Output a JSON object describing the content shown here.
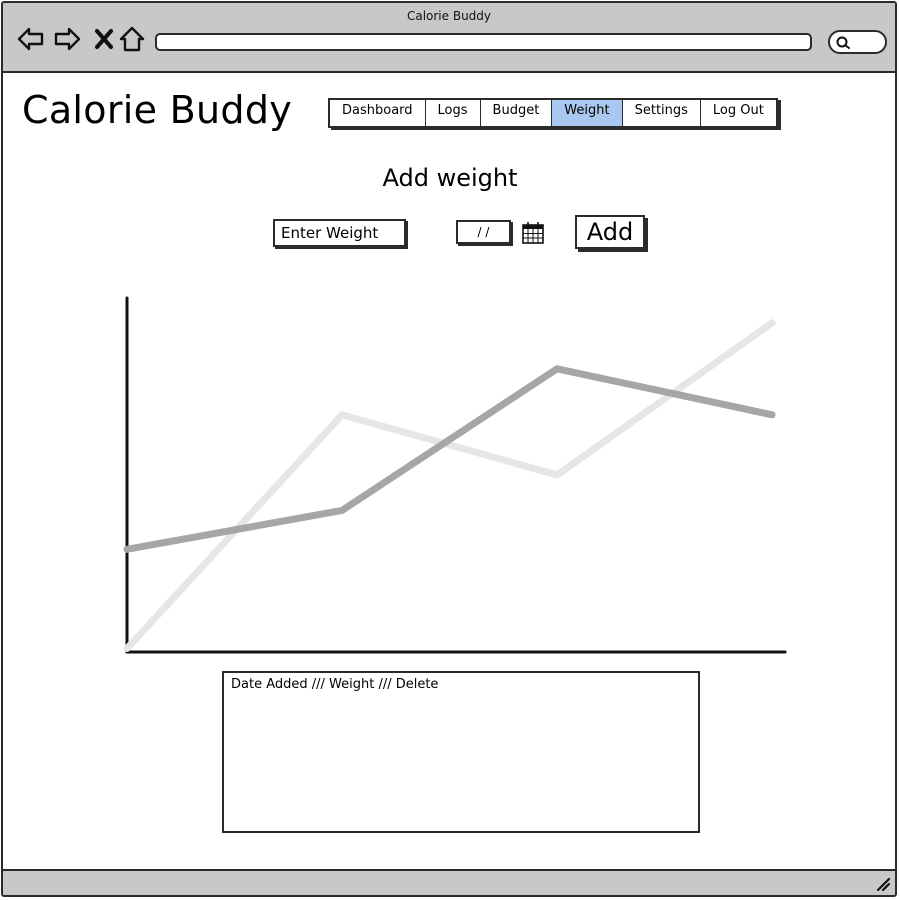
{
  "window": {
    "title": "Calorie Buddy"
  },
  "app": {
    "title": "Calorie Buddy"
  },
  "nav": {
    "tabs": [
      {
        "label": "Dashboard",
        "active": false
      },
      {
        "label": "Logs",
        "active": false
      },
      {
        "label": "Budget",
        "active": false
      },
      {
        "label": "Weight",
        "active": true
      },
      {
        "label": "Settings",
        "active": false
      },
      {
        "label": "Log Out",
        "active": false
      }
    ]
  },
  "form": {
    "title": "Add weight",
    "weight_placeholder": "Enter Weight",
    "date_value": "/ /",
    "add_label": "Add"
  },
  "log": {
    "header": "Date Added /// Weight /// Delete"
  },
  "icons": {
    "back": "back-arrow-icon",
    "forward": "forward-arrow-icon",
    "stop": "close-icon",
    "home": "home-icon",
    "search": "search-icon",
    "calendar": "calendar-icon",
    "resize": "resize-grip-icon"
  },
  "colors": {
    "active_tab": "#a8c8f2",
    "chrome": "#c8c8c8",
    "series_dark": "#a6a6a6",
    "series_light": "#e6e6e6"
  },
  "chart_data": {
    "type": "line",
    "x": [
      0,
      1,
      2,
      3
    ],
    "xlim": [
      0,
      3.06
    ],
    "ylim": [
      0,
      100
    ],
    "series": [
      {
        "values": [
          29,
          40,
          80,
          67
        ],
        "color": "#a6a6a6"
      },
      {
        "values": [
          1,
          67,
          50,
          93
        ],
        "color": "#e6e6e6"
      }
    ]
  }
}
